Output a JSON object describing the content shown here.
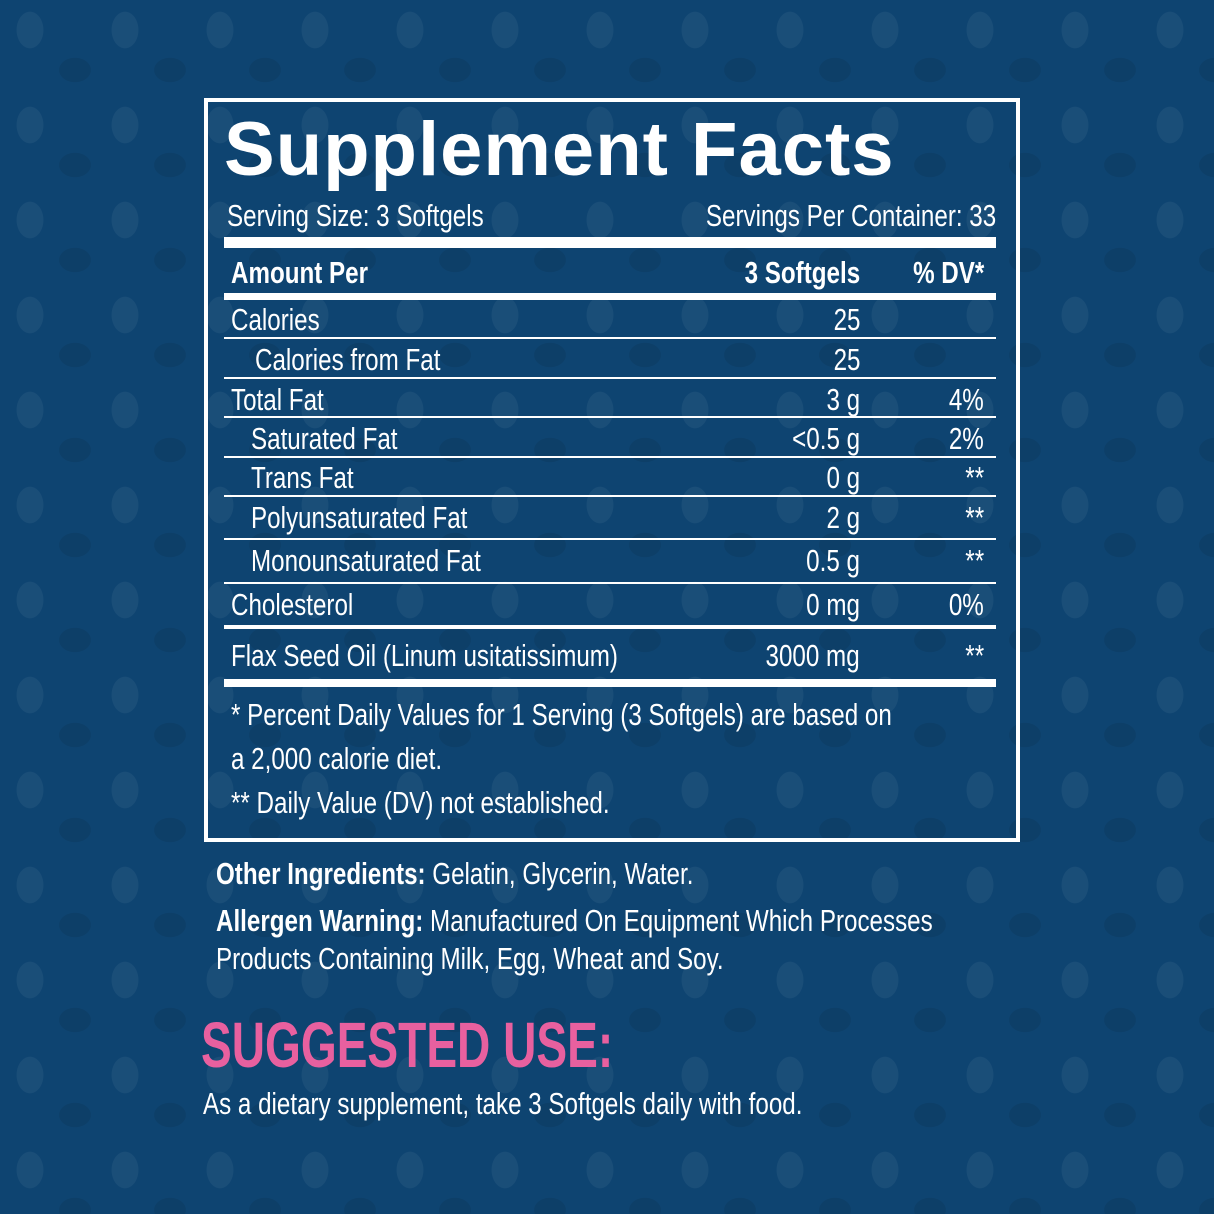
{
  "title": "Supplement Facts",
  "serving_size": "Serving Size: 3 Softgels",
  "servings_per_container": "Servings Per Container: 33",
  "header": {
    "amount_per": "Amount Per",
    "serving": "3 Softgels",
    "dv": "% DV*"
  },
  "rows": [
    {
      "name": "Calories",
      "amount": "25",
      "dv": ""
    },
    {
      "name": "Calories from Fat",
      "amount": "25",
      "dv": ""
    },
    {
      "name": "Total Fat",
      "amount": "3 g",
      "dv": "4%"
    },
    {
      "name": "Saturated Fat",
      "amount": "<0.5 g",
      "dv": "2%"
    },
    {
      "name": "Trans Fat",
      "amount": "0 g",
      "dv": "**"
    },
    {
      "name": "Polyunsaturated Fat",
      "amount": "2 g",
      "dv": "**"
    },
    {
      "name": "Monounsaturated Fat",
      "amount": "0.5 g",
      "dv": "**"
    },
    {
      "name": "Cholesterol",
      "amount": "0 mg",
      "dv": "0%"
    },
    {
      "name": "Flax Seed Oil (Linum usitatissimum)",
      "amount": "3000 mg",
      "dv": "**"
    }
  ],
  "footnotes": [
    "* Percent Daily Values for 1 Serving (3 Softgels) are based on",
    "a 2,000 calorie diet.",
    "** Daily Value (DV) not established."
  ],
  "other_ingredients": {
    "label": "Other Ingredients:",
    "text": " Gelatin, Glycerin, Water."
  },
  "allergen": {
    "label": "Allergen Warning:",
    "text": " Manufactured On Equipment Which Processes",
    "line2": "Products Containing Milk, Egg, Wheat and Soy."
  },
  "suggested_use": {
    "heading": "SUGGESTED USE:",
    "text": "As a dietary supplement, take 3 Softgels daily with food."
  },
  "colors": {
    "background": "#0e4471",
    "text": "#ffffff",
    "accent": "#e8609f"
  }
}
